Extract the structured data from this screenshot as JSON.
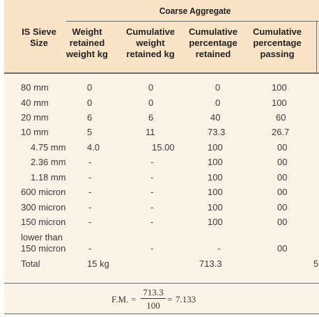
{
  "table": {
    "group_title": "Coarse Aggregate",
    "headers": {
      "size": [
        "IS Sieve",
        "Size"
      ],
      "weight": [
        "Weight",
        "retained",
        "weight kg"
      ],
      "cum_weight": [
        "Cumulative",
        "weight",
        "retained kg"
      ],
      "cum_pct_ret": [
        "Cumulative",
        "percentage",
        "retained"
      ],
      "cum_pct_pass": [
        "Cumulative",
        "percentage",
        "passing"
      ]
    },
    "rows": [
      {
        "size": "80 mm",
        "weight": "0",
        "cum_weight": "0",
        "cum_pct_ret": "0",
        "cum_pct_pass": "100"
      },
      {
        "size": "40 mm",
        "weight": "0",
        "cum_weight": "0",
        "cum_pct_ret": "0",
        "cum_pct_pass": "100"
      },
      {
        "size": "20 mm",
        "weight": "6",
        "cum_weight": "6",
        "cum_pct_ret": "40",
        "cum_pct_pass": "60"
      },
      {
        "size": "10 mm",
        "weight": "5",
        "cum_weight": "11",
        "cum_pct_ret": "73.3",
        "cum_pct_pass": "26.7"
      },
      {
        "size": "4.75 mm",
        "weight": "4.0",
        "cum_weight": "15.00",
        "cum_pct_ret": "100",
        "cum_pct_pass": "00"
      },
      {
        "size": "2.36 mm",
        "weight": "-",
        "cum_weight": "-",
        "cum_pct_ret": "100",
        "cum_pct_pass": "00"
      },
      {
        "size": "1.18 mm",
        "weight": "-",
        "cum_weight": "-",
        "cum_pct_ret": "100",
        "cum_pct_pass": "00"
      },
      {
        "size": "600 micron",
        "weight": "-",
        "cum_weight": "-",
        "cum_pct_ret": "100",
        "cum_pct_pass": "00"
      },
      {
        "size": "300 micron",
        "weight": "-",
        "cum_weight": "-",
        "cum_pct_ret": "100",
        "cum_pct_pass": "00"
      },
      {
        "size": "150 micron",
        "weight": "-",
        "cum_weight": "-",
        "cum_pct_ret": "100",
        "cum_pct_pass": "00"
      },
      {
        "size": "lower than",
        "weight": "",
        "cum_weight": "",
        "cum_pct_ret": "",
        "cum_pct_pass": ""
      },
      {
        "size": "150 micron",
        "weight": "-",
        "cum_weight": "-",
        "cum_pct_ret": "-",
        "cum_pct_pass": "00"
      },
      {
        "size": "Total",
        "weight": "15 kg",
        "cum_weight": "",
        "cum_pct_ret": "713.3",
        "cum_pct_pass": ""
      }
    ],
    "cut_off_right": "5"
  },
  "fineness": {
    "label": "F.M.",
    "eq": "=",
    "numerator": "713.3",
    "denominator": "100",
    "eq2": "=",
    "result": "7.133"
  },
  "colors": {
    "panel": "#fdf2e6",
    "header_band": "#fbe3c7",
    "rule": "#6b6b6b"
  }
}
